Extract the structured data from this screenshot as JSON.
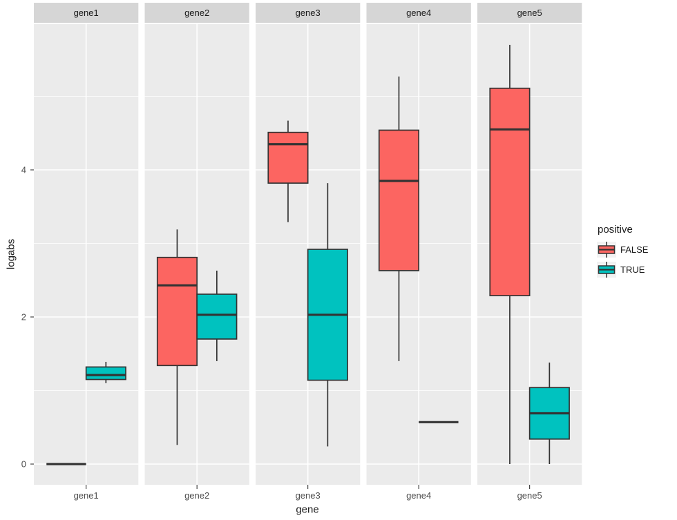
{
  "figure": {
    "background": "#ffffff",
    "panel_bg": "#ebebeb",
    "strip_bg": "#d6d6d6",
    "grid_color": "#ffffff",
    "box_stroke": "#333333",
    "tick_label_color": "#4d4d4d",
    "title_color": "#1a1a1a"
  },
  "chart_data": {
    "type": "boxplot",
    "title": "",
    "xlabel": "gene",
    "ylabel": "logabs",
    "facets": [
      "gene1",
      "gene2",
      "gene3",
      "gene4",
      "gene5"
    ],
    "x_tick_labels": [
      "gene1",
      "gene2",
      "gene3",
      "gene4",
      "gene5"
    ],
    "y_ticks": [
      0,
      2,
      4
    ],
    "y_minor_gridlines": [
      1,
      3,
      5
    ],
    "ylim": [
      -0.28,
      5.98
    ],
    "grid": "white major and minor gridlines on gray panels",
    "legend_position": "right",
    "legend": {
      "title": "positive",
      "entries": [
        {
          "label": "FALSE",
          "color": "#fc6561"
        },
        {
          "label": "TRUE",
          "color": "#00c2bf"
        }
      ]
    },
    "series": [
      {
        "facet": "gene1",
        "group": "FALSE",
        "whisker_low": 0.0,
        "q1": 0.0,
        "median": 0.0,
        "q3": 0.0,
        "whisker_high": 0.0
      },
      {
        "facet": "gene1",
        "group": "TRUE",
        "whisker_low": 1.1,
        "q1": 1.15,
        "median": 1.21,
        "q3": 1.32,
        "whisker_high": 1.39
      },
      {
        "facet": "gene2",
        "group": "FALSE",
        "whisker_low": 0.26,
        "q1": 1.34,
        "median": 2.43,
        "q3": 2.81,
        "whisker_high": 3.19
      },
      {
        "facet": "gene2",
        "group": "TRUE",
        "whisker_low": 1.4,
        "q1": 1.7,
        "median": 2.03,
        "q3": 2.31,
        "whisker_high": 2.63
      },
      {
        "facet": "gene3",
        "group": "FALSE",
        "whisker_low": 3.29,
        "q1": 3.82,
        "median": 4.35,
        "q3": 4.51,
        "whisker_high": 4.67
      },
      {
        "facet": "gene3",
        "group": "TRUE",
        "whisker_low": 0.24,
        "q1": 1.14,
        "median": 2.03,
        "q3": 2.92,
        "whisker_high": 3.82
      },
      {
        "facet": "gene4",
        "group": "FALSE",
        "whisker_low": 1.4,
        "q1": 2.63,
        "median": 3.85,
        "q3": 4.54,
        "whisker_high": 5.27
      },
      {
        "facet": "gene4",
        "group": "TRUE",
        "whisker_low": 0.57,
        "q1": 0.57,
        "median": 0.57,
        "q3": 0.57,
        "whisker_high": 0.57
      },
      {
        "facet": "gene5",
        "group": "FALSE",
        "whisker_low": 0.0,
        "q1": 2.29,
        "median": 4.55,
        "q3": 5.11,
        "whisker_high": 5.7
      },
      {
        "facet": "gene5",
        "group": "TRUE",
        "whisker_low": 0.0,
        "q1": 0.34,
        "median": 0.69,
        "q3": 1.04,
        "whisker_high": 1.38
      }
    ]
  }
}
